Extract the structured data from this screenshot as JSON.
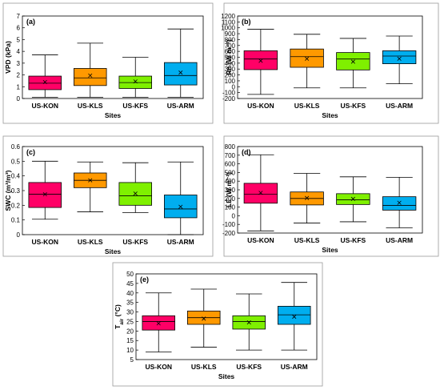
{
  "colors": [
    "#ff0066",
    "#ff9900",
    "#7ff000",
    "#00aeef"
  ],
  "chart_data": [
    {
      "type": "box",
      "panel_label": "(a)",
      "categories": [
        "US-KON",
        "US-KLS",
        "US-KFS",
        "US-ARM"
      ],
      "xlabel": "Sites",
      "ylabel": "VPD (kPa)",
      "ylim": [
        0,
        7
      ],
      "yticks": [
        "0",
        "1",
        "2",
        "3",
        "4",
        "5",
        "6",
        "7"
      ],
      "yticks_values": [
        0,
        1,
        2,
        3,
        4,
        5,
        6,
        7
      ],
      "stats": [
        {
          "min": 0.1,
          "q1": 0.75,
          "median": 1.3,
          "q3": 1.9,
          "max": 3.7,
          "mean": 1.4
        },
        {
          "min": 0.1,
          "q1": 1.1,
          "median": 1.75,
          "q3": 2.55,
          "max": 4.7,
          "mean": 1.95
        },
        {
          "min": 0.1,
          "q1": 0.85,
          "median": 1.35,
          "q3": 1.9,
          "max": 3.5,
          "mean": 1.45
        },
        {
          "min": 0.1,
          "q1": 1.15,
          "median": 1.95,
          "q3": 3.05,
          "max": 5.9,
          "mean": 2.2
        }
      ]
    },
    {
      "type": "box",
      "panel_label": "(b)",
      "categories": [
        "US-KON",
        "US-KLS",
        "US-KFS",
        "US-ARM"
      ],
      "xlabel": "Sites",
      "ylabel": "Rn (W m⁻²)",
      "ylim": [
        -200,
        1200
      ],
      "yticks": [
        "-200",
        "-100",
        "0",
        "100",
        "200",
        "300",
        "400",
        "500",
        "600",
        "700",
        "800",
        "900",
        "1000",
        "1100",
        "1200"
      ],
      "yticks_values": [
        -200,
        -100,
        0,
        100,
        200,
        300,
        400,
        500,
        600,
        700,
        800,
        900,
        1000,
        1100,
        1200
      ],
      "stats": [
        {
          "min": -130,
          "q1": 290,
          "median": 470,
          "q3": 610,
          "max": 975,
          "mean": 440
        },
        {
          "min": -20,
          "q1": 330,
          "median": 510,
          "q3": 640,
          "max": 890,
          "mean": 475
        },
        {
          "min": -20,
          "q1": 285,
          "median": 470,
          "q3": 580,
          "max": 820,
          "mean": 425
        },
        {
          "min": 50,
          "q1": 390,
          "median": 520,
          "q3": 610,
          "max": 860,
          "mean": 475
        }
      ]
    },
    {
      "type": "box",
      "panel_label": "(c)",
      "categories": [
        "US-KON",
        "US-KLS",
        "US-KFS",
        "US-ARM"
      ],
      "xlabel": "Sites",
      "ylabel": "SWC (m³/m³)",
      "ylim": [
        0,
        0.6
      ],
      "yticks": [
        "0",
        "0.1",
        "0.2",
        "0.3",
        "0.4",
        "0.5",
        "0.6"
      ],
      "yticks_values": [
        0,
        0.1,
        0.2,
        0.3,
        0.4,
        0.5,
        0.6
      ],
      "stats": [
        {
          "min": 0.105,
          "q1": 0.185,
          "median": 0.275,
          "q3": 0.355,
          "max": 0.5,
          "mean": 0.275
        },
        {
          "min": 0.155,
          "q1": 0.32,
          "median": 0.37,
          "q3": 0.42,
          "max": 0.495,
          "mean": 0.37
        },
        {
          "min": 0.15,
          "q1": 0.2,
          "median": 0.265,
          "q3": 0.355,
          "max": 0.49,
          "mean": 0.28
        },
        {
          "min": 0.0,
          "q1": 0.115,
          "median": 0.175,
          "q3": 0.27,
          "max": 0.495,
          "mean": 0.19
        }
      ]
    },
    {
      "type": "box",
      "panel_label": "(d)",
      "categories": [
        "US-KON",
        "US-KLS",
        "US-KFS",
        "US-ARM"
      ],
      "xlabel": "Sites",
      "ylabel": "LE (W m⁻²)",
      "ylim": [
        -200,
        800
      ],
      "yticks": [
        "-200",
        "-100",
        "0",
        "100",
        "200",
        "300",
        "400",
        "500",
        "600",
        "700",
        "800"
      ],
      "yticks_values": [
        -200,
        -100,
        0,
        100,
        200,
        300,
        400,
        500,
        600,
        700,
        800
      ],
      "stats": [
        {
          "min": -175,
          "q1": 145,
          "median": 250,
          "q3": 375,
          "max": 705,
          "mean": 265
        },
        {
          "min": -85,
          "q1": 125,
          "median": 200,
          "q3": 275,
          "max": 490,
          "mean": 205
        },
        {
          "min": -70,
          "q1": 130,
          "median": 185,
          "q3": 255,
          "max": 450,
          "mean": 195
        },
        {
          "min": -140,
          "q1": 65,
          "median": 120,
          "q3": 220,
          "max": 445,
          "mean": 150
        }
      ]
    },
    {
      "type": "box",
      "panel_label": "(e)",
      "categories": [
        "US-KON",
        "US-KLS",
        "US-KFS",
        "US-ARM"
      ],
      "xlabel": "Sites",
      "ylabel": "T_air (°C)",
      "ylabel_main": "T",
      "ylabel_sub": "air",
      "ylabel_rest": " (°C)",
      "ylim": [
        5,
        50
      ],
      "yticks": [
        "5",
        "10",
        "15",
        "20",
        "25",
        "30",
        "35",
        "40",
        "45",
        "50"
      ],
      "yticks_values": [
        5,
        10,
        15,
        20,
        25,
        30,
        35,
        40,
        45,
        50
      ],
      "stats": [
        {
          "min": 9,
          "q1": 20.5,
          "median": 25,
          "q3": 28,
          "max": 40,
          "mean": 24
        },
        {
          "min": 11.5,
          "q1": 23.5,
          "median": 27,
          "q3": 30.5,
          "max": 42,
          "mean": 26.5
        },
        {
          "min": 10,
          "q1": 21,
          "median": 25,
          "q3": 28,
          "max": 39.5,
          "mean": 24.5
        },
        {
          "min": 10,
          "q1": 23.5,
          "median": 28.5,
          "q3": 33,
          "max": 45.5,
          "mean": 27.5
        }
      ]
    }
  ]
}
